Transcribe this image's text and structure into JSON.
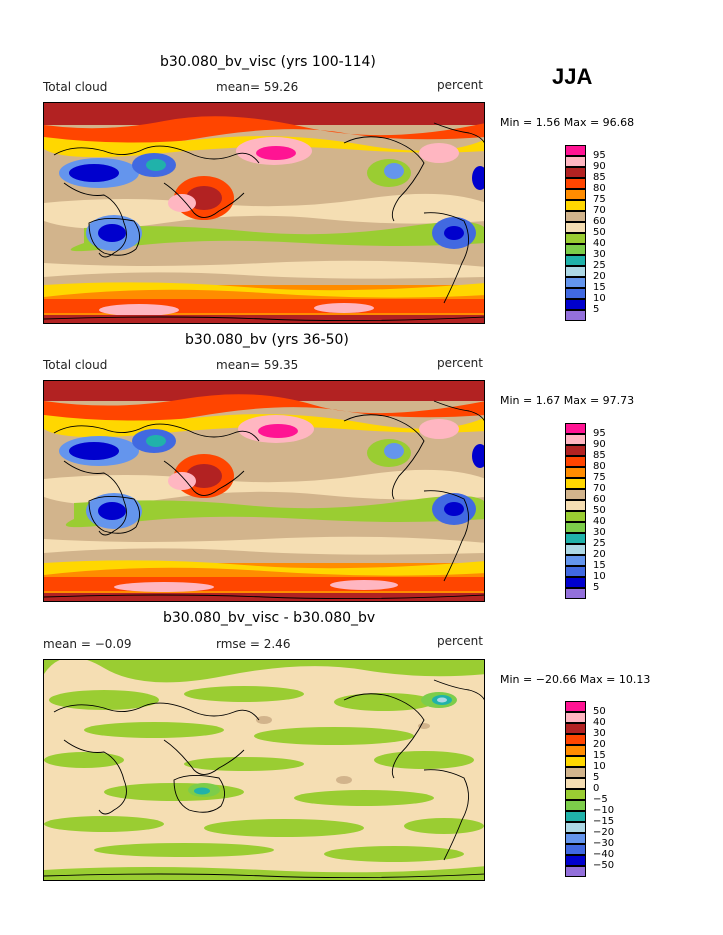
{
  "season": "JJA",
  "panels": [
    {
      "title": "b30.080_bv_visc (yrs 100-114)",
      "left_label": "Total cloud",
      "center_label": "mean=  59.26",
      "right_label": "percent",
      "minmax": "Min =    1.56 Max =   96.68",
      "legend": [
        "95",
        "90",
        "85",
        "80",
        "75",
        "70",
        "60",
        "50",
        "40",
        "30",
        "25",
        "20",
        "15",
        "10",
        "5"
      ]
    },
    {
      "title": "b30.080_bv (yrs 36-50)",
      "left_label": "Total cloud",
      "center_label": "mean=  59.35",
      "right_label": "percent",
      "minmax": "Min =    1.67 Max =   97.73",
      "legend": [
        "95",
        "90",
        "85",
        "80",
        "75",
        "70",
        "60",
        "50",
        "40",
        "30",
        "25",
        "20",
        "15",
        "10",
        "5"
      ]
    },
    {
      "title": "b30.080_bv_visc - b30.080_bv",
      "left_label": "mean =  −0.09",
      "center_label": "rmse =    2.46",
      "right_label": "percent",
      "minmax": "Min = −20.66 Max =   10.13",
      "legend": [
        "50",
        "40",
        "30",
        "20",
        "15",
        "10",
        "5",
        "0",
        "−5",
        "−10",
        "−15",
        "−20",
        "−30",
        "−40",
        "−50"
      ]
    }
  ],
  "colors": {
    "cloud_scale": [
      "#ff1493",
      "#ffb6c1",
      "#b22222",
      "#ff4500",
      "#ff8c00",
      "#ffd700",
      "#d2b48c",
      "#f5deb3",
      "#9acd32",
      "#7ccd4a",
      "#20b2aa",
      "#add8e6",
      "#6495ed",
      "#4169e1",
      "#0000cd",
      "#9370db"
    ],
    "diff_scale": [
      "#ff1493",
      "#ffb6c1",
      "#b22222",
      "#ff4500",
      "#ff8c00",
      "#ffd700",
      "#d2b48c",
      "#f5deb3",
      "#9acd32",
      "#7ccd4a",
      "#20b2aa",
      "#add8e6",
      "#6495ed",
      "#4169e1",
      "#0000cd",
      "#9370db"
    ]
  }
}
